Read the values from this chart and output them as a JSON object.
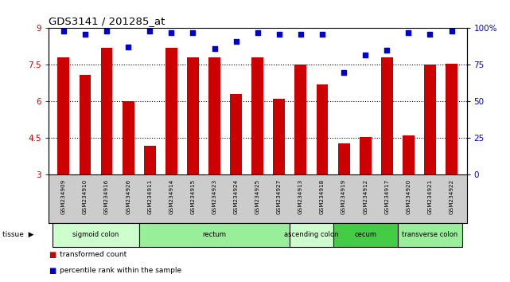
{
  "title": "GDS3141 / 201285_at",
  "samples": [
    "GSM234909",
    "GSM234910",
    "GSM234916",
    "GSM234926",
    "GSM234911",
    "GSM234914",
    "GSM234915",
    "GSM234923",
    "GSM234924",
    "GSM234925",
    "GSM234927",
    "GSM234913",
    "GSM234918",
    "GSM234919",
    "GSM234912",
    "GSM234917",
    "GSM234920",
    "GSM234921",
    "GSM234922"
  ],
  "bar_values": [
    7.8,
    7.1,
    8.2,
    6.0,
    4.2,
    8.2,
    7.8,
    7.8,
    6.3,
    7.8,
    6.1,
    7.5,
    6.7,
    4.3,
    4.55,
    7.8,
    4.6,
    7.5,
    7.55
  ],
  "percentile_values": [
    98,
    96,
    98,
    87,
    98,
    97,
    97,
    86,
    91,
    97,
    96,
    96,
    96,
    70,
    82,
    85,
    97,
    96,
    98
  ],
  "bar_color": "#cc0000",
  "dot_color": "#0000cc",
  "ylim_left": [
    3,
    9
  ],
  "ylim_right": [
    0,
    100
  ],
  "yticks_left": [
    3,
    4.5,
    6,
    7.5,
    9
  ],
  "yticks_right": [
    0,
    25,
    50,
    75,
    100
  ],
  "ytick_labels_right": [
    "0",
    "25",
    "50",
    "75",
    "100%"
  ],
  "tissue_groups": [
    {
      "label": "sigmoid colon",
      "start": 0,
      "end": 4,
      "color": "#ccffcc"
    },
    {
      "label": "rectum",
      "start": 4,
      "end": 11,
      "color": "#99ee99"
    },
    {
      "label": "ascending colon",
      "start": 11,
      "end": 13,
      "color": "#ccffcc"
    },
    {
      "label": "cecum",
      "start": 13,
      "end": 16,
      "color": "#44cc44"
    },
    {
      "label": "transverse colon",
      "start": 16,
      "end": 19,
      "color": "#99ee99"
    }
  ],
  "tissue_label": "tissue",
  "legend_bar_label": "transformed count",
  "legend_dot_label": "percentile rank within the sample",
  "background_color": "#ffffff",
  "plot_bg_color": "#ffffff",
  "xticklabel_bg": "#cccccc"
}
